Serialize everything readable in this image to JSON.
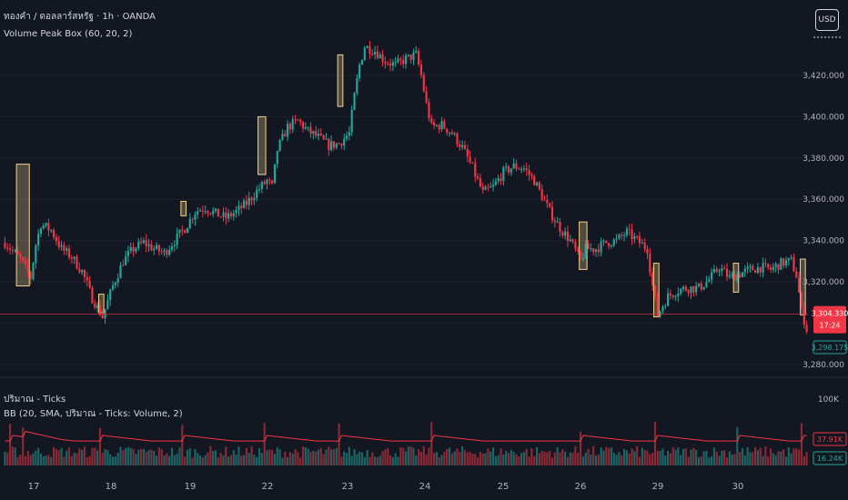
{
  "header": {
    "symbol_line": "ทองคำ / ดอลลาร์สหรัฐ · 1h · OANDA",
    "indicator_line": "Volume Peak Box (60, 20, 2)"
  },
  "currency_button": "USD",
  "price_axis": {
    "ticks": [
      "3,420.000",
      "3,400.000",
      "3,380.000",
      "3,360.000",
      "3,340.000",
      "3,320.000",
      "3,280.000"
    ],
    "tick_values": [
      3420,
      3400,
      3380,
      3360,
      3340,
      3320,
      3280
    ],
    "current_price": "3,304.330",
    "countdown": "17:24",
    "low_label": "3,298.175"
  },
  "volume_pane": {
    "title": "ปริมาณ - Ticks",
    "bb_line": "BB (20, SMA, ปริมาณ - Ticks: Volume, 2)",
    "scale_label": "100K",
    "upper_label": "37.91K",
    "lower_label": "16.24K"
  },
  "time_axis": {
    "labels": [
      "17",
      "18",
      "19",
      "22",
      "23",
      "24",
      "25",
      "26",
      "29",
      "30"
    ]
  },
  "colors": {
    "background": "#131722",
    "up": "#26a69a",
    "down": "#f23645",
    "box": "#f5d38b",
    "bb_line": "#f23645",
    "price_line": "#f23645"
  },
  "chart_data": {
    "type": "candlestick",
    "symbol": "XAUUSD",
    "timeframe": "1h",
    "price_range": [
      3275,
      3440
    ],
    "path_anchors": [
      [
        0,
        3339
      ],
      [
        6,
        3331
      ],
      [
        10,
        3322
      ],
      [
        12,
        3338
      ],
      [
        14,
        3348
      ],
      [
        18,
        3345
      ],
      [
        22,
        3336
      ],
      [
        26,
        3332
      ],
      [
        30,
        3325
      ],
      [
        34,
        3312
      ],
      [
        38,
        3303
      ],
      [
        42,
        3318
      ],
      [
        46,
        3330
      ],
      [
        50,
        3336
      ],
      [
        54,
        3339
      ],
      [
        58,
        3336
      ],
      [
        62,
        3334
      ],
      [
        66,
        3340
      ],
      [
        70,
        3346
      ],
      [
        74,
        3354
      ],
      [
        78,
        3356
      ],
      [
        82,
        3353
      ],
      [
        86,
        3351
      ],
      [
        90,
        3354
      ],
      [
        94,
        3358
      ],
      [
        98,
        3364
      ],
      [
        102,
        3369
      ],
      [
        104,
        3366
      ],
      [
        106,
        3384
      ],
      [
        110,
        3395
      ],
      [
        114,
        3398
      ],
      [
        118,
        3393
      ],
      [
        122,
        3390
      ],
      [
        126,
        3386
      ],
      [
        130,
        3387
      ],
      [
        134,
        3392
      ],
      [
        136,
        3410
      ],
      [
        138,
        3425
      ],
      [
        140,
        3434
      ],
      [
        144,
        3432
      ],
      [
        148,
        3427
      ],
      [
        152,
        3425
      ],
      [
        156,
        3428
      ],
      [
        160,
        3430
      ],
      [
        162,
        3420
      ],
      [
        164,
        3406
      ],
      [
        166,
        3395
      ],
      [
        170,
        3396
      ],
      [
        174,
        3392
      ],
      [
        178,
        3385
      ],
      [
        182,
        3375
      ],
      [
        186,
        3363
      ],
      [
        190,
        3366
      ],
      [
        194,
        3373
      ],
      [
        198,
        3376
      ],
      [
        202,
        3375
      ],
      [
        206,
        3369
      ],
      [
        208,
        3364
      ],
      [
        212,
        3354
      ],
      [
        216,
        3346
      ],
      [
        220,
        3340
      ],
      [
        224,
        3330
      ],
      [
        226,
        3336
      ],
      [
        230,
        3336
      ],
      [
        234,
        3339
      ],
      [
        238,
        3340
      ],
      [
        242,
        3344
      ],
      [
        246,
        3340
      ],
      [
        250,
        3336
      ],
      [
        252,
        3318
      ],
      [
        254,
        3304
      ],
      [
        258,
        3313
      ],
      [
        262,
        3316
      ],
      [
        266,
        3317
      ],
      [
        270,
        3317
      ],
      [
        274,
        3321
      ],
      [
        278,
        3327
      ],
      [
        282,
        3322
      ],
      [
        286,
        3324
      ],
      [
        290,
        3326
      ],
      [
        294,
        3327
      ],
      [
        298,
        3326
      ],
      [
        302,
        3329
      ],
      [
        306,
        3330
      ],
      [
        308,
        3323
      ],
      [
        310,
        3306
      ],
      [
        312,
        3297
      ]
    ],
    "bars": 313,
    "volume_peak_boxes": [
      {
        "from_bar": 5,
        "to_bar": 9,
        "high": 3377,
        "low": 3318
      },
      {
        "from_bar": 37,
        "to_bar": 38,
        "high": 3314,
        "low": 3305
      },
      {
        "from_bar": 69,
        "to_bar": 70,
        "high": 3359,
        "low": 3352
      },
      {
        "from_bar": 99,
        "to_bar": 101,
        "high": 3400,
        "low": 3372
      },
      {
        "from_bar": 130,
        "to_bar": 131,
        "high": 3430,
        "low": 3405
      },
      {
        "from_bar": 224,
        "to_bar": 226,
        "high": 3349,
        "low": 3326
      },
      {
        "from_bar": 253,
        "to_bar": 254,
        "high": 3329,
        "low": 3303
      },
      {
        "from_bar": 284,
        "to_bar": 285,
        "high": 3329,
        "low": 3315
      },
      {
        "from_bar": 310,
        "to_bar": 311,
        "high": 3331,
        "low": 3304
      }
    ],
    "volume_peak_bars": [
      2,
      7,
      37,
      69,
      101,
      130,
      166,
      224,
      253,
      285,
      310
    ],
    "current_price": 3304.33,
    "volume_scale_max": 100000,
    "bb_upper": 37910,
    "bb_lower": 16240
  }
}
